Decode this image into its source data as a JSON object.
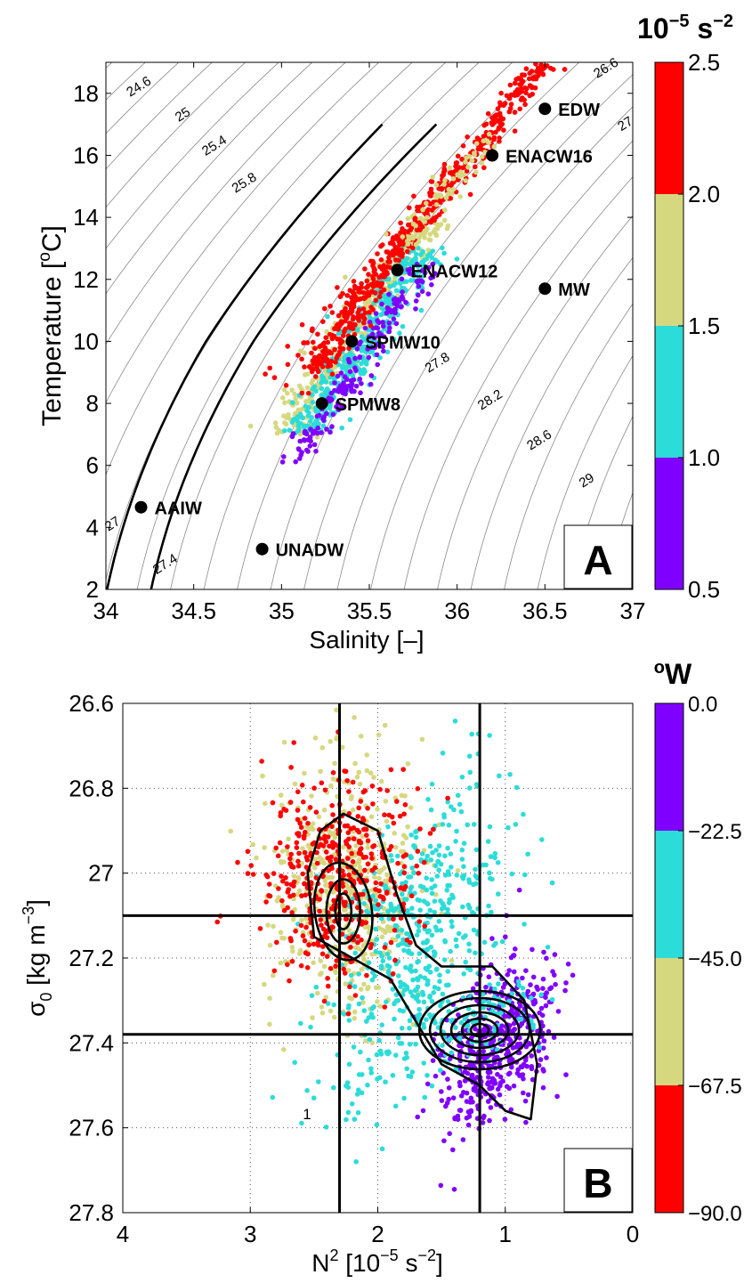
{
  "chart_data": [
    {
      "type": "scatter",
      "panel_label": "A",
      "xlabel": "Salinity [–]",
      "ylabel_main": "Temperature [",
      "ylabel_sup": "o",
      "ylabel_end": "C]",
      "xlim": [
        34,
        37
      ],
      "ylim": [
        2,
        19
      ],
      "xticks": [
        "34",
        "34.5",
        "35",
        "35.5",
        "36",
        "36.5",
        "37"
      ],
      "yticks": [
        "2",
        "4",
        "6",
        "8",
        "10",
        "12",
        "14",
        "16",
        "18"
      ],
      "grid": false,
      "isopycnal_labels": [
        "24.6",
        "25",
        "25.4",
        "25.8",
        "26.6",
        "27",
        "27.8",
        "28.2",
        "28.6",
        "29",
        "27",
        "27.4"
      ],
      "water_masses": [
        {
          "name": "EDW",
          "x": 36.5,
          "y": 17.5
        },
        {
          "name": "ENACW16",
          "x": 36.2,
          "y": 16.0
        },
        {
          "name": "ENACW12",
          "x": 35.66,
          "y": 12.3
        },
        {
          "name": "MW",
          "x": 36.5,
          "y": 11.7
        },
        {
          "name": "SPMW10",
          "x": 35.4,
          "y": 10.0
        },
        {
          "name": "SPMW8",
          "x": 35.23,
          "y": 8.0
        },
        {
          "name": "AAIW",
          "x": 34.2,
          "y": 4.65
        },
        {
          "name": "UNADW",
          "x": 34.89,
          "y": 3.3
        }
      ],
      "colorbar": {
        "title_base": "10",
        "title_exp": "−5",
        "title_unit": " s",
        "title_unit_exp": "−2",
        "ticks": [
          "2.5",
          "2.0",
          "1.5",
          "1.0",
          "0.5"
        ],
        "range": [
          0.5,
          2.5
        ],
        "colors": [
          "#8000ff",
          "#2cdcd8",
          "#d6d880",
          "#ff0000"
        ]
      }
    },
    {
      "type": "scatter",
      "panel_label": "B",
      "xlabel_main": "N",
      "xlabel_sup": "2",
      "xlabel_mid": " [10",
      "xlabel_sup2": "−5",
      "xlabel_mid2": " s",
      "xlabel_sup3": "−2",
      "xlabel_end": "]",
      "ylabel_main": "σ",
      "ylabel_sub": "0",
      "ylabel_mid": " [kg m",
      "ylabel_sup": "−3",
      "ylabel_end": "]",
      "xlim": [
        4,
        0
      ],
      "ylim": [
        27.8,
        26.6
      ],
      "xticks": [
        "4",
        "3",
        "2",
        "1",
        "0"
      ],
      "yticks": [
        "26.6",
        "26.8",
        "27",
        "27.2",
        "27.4",
        "27.6",
        "27.8"
      ],
      "grid": true,
      "contour_label": "1",
      "reference_lines": {
        "x": [
          2.3,
          1.2
        ],
        "y": [
          27.1,
          27.38
        ]
      },
      "colorbar": {
        "title_sup": "o",
        "title_main": "W",
        "ticks": [
          "0.0",
          "−22.5",
          "−45.0",
          "−67.5",
          "−90.0"
        ],
        "range": [
          -90,
          0
        ],
        "colors": [
          "#ff0000",
          "#d6d880",
          "#2cdcd8",
          "#8000ff"
        ]
      }
    }
  ]
}
